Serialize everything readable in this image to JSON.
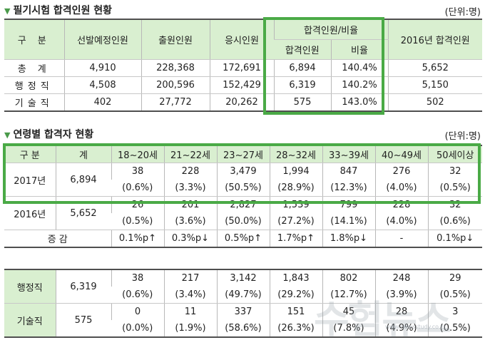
{
  "section1": {
    "title": "필기시험 합격인원 현황",
    "unit": "(단위:명)",
    "headers": {
      "category": "구  분",
      "planned": "선발예정인원",
      "applicants": "출원인원",
      "takers": "응시인원",
      "pass_group": "합격인원/비율",
      "passed": "합격인원",
      "ratio": "비율",
      "pass2016": "2016년 합격인원"
    },
    "rows": [
      {
        "label": "총  계",
        "planned": "4,910",
        "applicants": "228,368",
        "takers": "172,691",
        "passed": "6,894",
        "ratio": "140.4%",
        "pass2016": "5,652"
      },
      {
        "label": "행정직",
        "planned": "4,508",
        "applicants": "200,596",
        "takers": "152,429",
        "passed": "6,319",
        "ratio": "140.2%",
        "pass2016": "5,150"
      },
      {
        "label": "기술직",
        "planned": "402",
        "applicants": "27,772",
        "takers": "20,262",
        "passed": "575",
        "ratio": "143.0%",
        "pass2016": "502"
      }
    ]
  },
  "section2": {
    "title": "연령별 합격자 현황",
    "unit": "(단위:명)",
    "headers": [
      "구 분",
      "계",
      "18~20세",
      "21~22세",
      "23~27세",
      "28~32세",
      "33~39세",
      "40~49세",
      "50세이상"
    ],
    "y2017": {
      "label": "2017년",
      "total": "6,894",
      "counts": [
        "38",
        "228",
        "3,479",
        "1,994",
        "847",
        "276",
        "32"
      ],
      "pcts": [
        "(0.6%)",
        "(3.3%)",
        "(50.5%)",
        "(28.9%)",
        "(12.3%)",
        "(4.0%)",
        "(0.5%)"
      ]
    },
    "y2016": {
      "label": "2016년",
      "total": "5,652",
      "counts": [
        "26",
        "201",
        "2,827",
        "1,539",
        "799",
        "228",
        "32"
      ],
      "pcts": [
        "(0.5%)",
        "(3.6%)",
        "(50.0%)",
        "(27.2%)",
        "(14.1%)",
        "(4.0%)",
        "(0.6%)"
      ]
    },
    "change": {
      "label": "증 감",
      "values": [
        "0.1%p↑",
        "0.3%p↓",
        "0.5%p↑",
        "1.7%p↑",
        "1.8%p↓",
        "-",
        "0.1%p↓"
      ]
    }
  },
  "section3": {
    "admin": {
      "label": "행정직",
      "total": "6,319",
      "counts": [
        "38",
        "217",
        "3,142",
        "1,843",
        "802",
        "248",
        "29"
      ],
      "pcts": [
        "(0.6%)",
        "(3.4%)",
        "(49.7%)",
        "(29.2%)",
        "(12.7%)",
        "(3.9%)",
        "(0.5%)"
      ]
    },
    "tech": {
      "label": "기술직",
      "total": "575",
      "counts": [
        "0",
        "11",
        "337",
        "151",
        "45",
        "28",
        "3"
      ],
      "pcts": [
        "(0.0%)",
        "(1.9%)",
        "(58.6%)",
        "(26.3%)",
        "(7.8%)",
        "(4.9%)",
        "(0.5%)"
      ]
    }
  },
  "watermark": "수험뉴스",
  "watermark_url": "www.newsstudy.co.kr",
  "colors": {
    "accent_green": "#4aaa46",
    "header_bg": "#d9efd0"
  }
}
